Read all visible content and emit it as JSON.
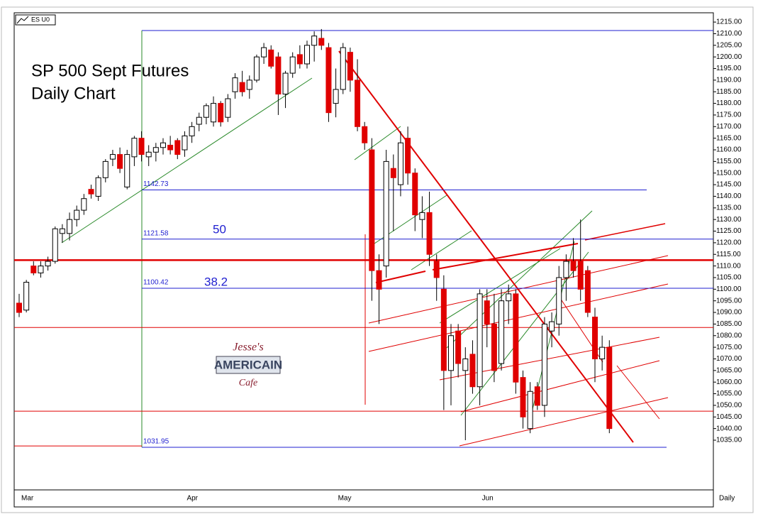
{
  "chart_data": {
    "type": "candlestick",
    "symbol": "ES U0",
    "title": "SP 500 Sept Futures",
    "subtitle": "Daily Chart",
    "x_label": "Daily",
    "watermark": [
      "Jesse's",
      "AMERICAIN",
      "Cafe"
    ],
    "annotations": [
      "50",
      "38.2"
    ],
    "categories": [
      "Mar",
      null,
      null,
      null,
      null,
      null,
      null,
      null,
      null,
      null,
      null,
      null,
      null,
      null,
      null,
      null,
      null,
      null,
      null,
      null,
      null,
      null,
      null,
      "Apr",
      null,
      null,
      null,
      null,
      null,
      null,
      null,
      null,
      null,
      null,
      null,
      null,
      null,
      null,
      null,
      null,
      null,
      null,
      null,
      null,
      "May",
      null,
      null,
      null,
      null,
      null,
      null,
      null,
      null,
      null,
      null,
      null,
      null,
      null,
      null,
      null,
      null,
      null,
      null,
      null,
      "Jun",
      null,
      null,
      null,
      null,
      null,
      null,
      null,
      null,
      null,
      null,
      null,
      null,
      null,
      null,
      null,
      null,
      null,
      null
    ],
    "open": [
      1094,
      1091,
      1110,
      1107,
      1110,
      1112,
      1124,
      1124,
      1130,
      1134,
      1143,
      1140,
      1148,
      1156,
      1158,
      1144,
      1157,
      1165,
      1157,
      1159,
      1161,
      1162,
      1164,
      1160,
      1166,
      1171,
      1174,
      1172,
      1180,
      1174,
      1185,
      1189,
      1186,
      1190,
      1200,
      1203,
      1200,
      1184,
      1193,
      1201,
      1197,
      1205,
      1208,
      1204,
      1180,
      1186,
      1202,
      1190,
      1170,
      1160,
      1108,
      1110,
      1152,
      1145,
      1165,
      1150,
      1130,
      1133,
      1112,
      1100,
      1065,
      1082,
      1065,
      1072,
      1058,
      1095,
      1085,
      1068,
      1095,
      1098,
      1062,
      1040,
      1058,
      1050,
      1082,
      1085,
      1105,
      1112,
      1112,
      1108,
      1088,
      1070,
      1075
    ],
    "high": [
      1098,
      1104,
      1112,
      1112,
      1114,
      1127,
      1128,
      1133,
      1136,
      1141,
      1145,
      1149,
      1156,
      1160,
      1161,
      1160,
      1166,
      1168,
      1162,
      1163,
      1165,
      1166,
      1165,
      1168,
      1172,
      1176,
      1180,
      1183,
      1181,
      1184,
      1193,
      1194,
      1192,
      1201,
      1206,
      1205,
      1202,
      1194,
      1202,
      1205,
      1207,
      1211,
      1212,
      1206,
      1195,
      1206,
      1204,
      1199,
      1172,
      1165,
      1115,
      1160,
      1158,
      1168,
      1170,
      1152,
      1140,
      1142,
      1115,
      1106,
      1085,
      1085,
      1075,
      1078,
      1100,
      1100,
      1098,
      1100,
      1102,
      1100,
      1065,
      1060,
      1060,
      1088,
      1090,
      1110,
      1115,
      1122,
      1130,
      1110,
      1092,
      1080,
      1078
    ],
    "low": [
      1088,
      1090,
      1106,
      1105,
      1108,
      1111,
      1120,
      1121,
      1127,
      1132,
      1139,
      1138,
      1146,
      1153,
      1150,
      1143,
      1153,
      1155,
      1153,
      1155,
      1158,
      1158,
      1156,
      1157,
      1163,
      1168,
      1171,
      1170,
      1170,
      1172,
      1182,
      1183,
      1182,
      1189,
      1197,
      1195,
      1175,
      1178,
      1191,
      1195,
      1195,
      1198,
      1203,
      1172,
      1174,
      1184,
      1185,
      1168,
      1160,
      1095,
      1085,
      1105,
      1125,
      1140,
      1145,
      1125,
      1122,
      1110,
      1095,
      1048,
      1050,
      1062,
      1035,
      1055,
      1050,
      1075,
      1060,
      1065,
      1085,
      1055,
      1040,
      1038,
      1048,
      1045,
      1075,
      1080,
      1095,
      1105,
      1095,
      1088,
      1060,
      1065,
      1038
    ],
    "close": [
      1090,
      1103,
      1107,
      1110,
      1112,
      1126,
      1126,
      1130,
      1134,
      1139,
      1141,
      1148,
      1155,
      1158,
      1152,
      1158,
      1165,
      1158,
      1159,
      1161,
      1163,
      1160,
      1158,
      1166,
      1170,
      1174,
      1179,
      1180,
      1172,
      1182,
      1191,
      1185,
      1190,
      1200,
      1204,
      1196,
      1184,
      1193,
      1200,
      1197,
      1205,
      1209,
      1205,
      1176,
      1186,
      1204,
      1190,
      1170,
      1163,
      1108,
      1100,
      1155,
      1148,
      1163,
      1150,
      1132,
      1133,
      1115,
      1105,
      1065,
      1080,
      1068,
      1070,
      1058,
      1098,
      1085,
      1065,
      1095,
      1098,
      1060,
      1045,
      1056,
      1050,
      1085,
      1086,
      1105,
      1112,
      1108,
      1100,
      1090,
      1070,
      1075,
      1040
    ],
    "up_color": "#ffffff",
    "down_color": "#e00000",
    "ylim": [
      1013.6,
      1219
    ],
    "yticks": [
      {
        "value": 1035,
        "label": "1035.00"
      },
      {
        "value": 1040,
        "label": "1040.00"
      },
      {
        "value": 1045,
        "label": "1045.00"
      },
      {
        "value": 1050,
        "label": "1050.00"
      },
      {
        "value": 1055,
        "label": "1055.00"
      },
      {
        "value": 1060,
        "label": "1060.00"
      },
      {
        "value": 1065,
        "label": "1065.00"
      },
      {
        "value": 1070,
        "label": "1070.00"
      },
      {
        "value": 1075,
        "label": "1075.00"
      },
      {
        "value": 1080,
        "label": "1080.00"
      },
      {
        "value": 1085,
        "label": "1085.00"
      },
      {
        "value": 1090,
        "label": "1090.00"
      },
      {
        "value": 1095,
        "label": "1095.00"
      },
      {
        "value": 1100,
        "label": "1100.00"
      },
      {
        "value": 1105,
        "label": "1105.00"
      },
      {
        "value": 1110,
        "label": "1110.00"
      },
      {
        "value": 1115,
        "label": "1115.00"
      },
      {
        "value": 1120,
        "label": "1120.00"
      },
      {
        "value": 1125,
        "label": "1125.00"
      },
      {
        "value": 1130,
        "label": "1130.00"
      },
      {
        "value": 1135,
        "label": "1135.00"
      },
      {
        "value": 1140,
        "label": "1140.00"
      },
      {
        "value": 1145,
        "label": "1145.00"
      },
      {
        "value": 1150,
        "label": "1150.00"
      },
      {
        "value": 1155,
        "label": "1155.00"
      },
      {
        "value": 1160,
        "label": "1160.00"
      },
      {
        "value": 1165,
        "label": "1165.00"
      },
      {
        "value": 1170,
        "label": "1170.00"
      },
      {
        "value": 1175,
        "label": "1175.00"
      },
      {
        "value": 1180,
        "label": "1180.00"
      },
      {
        "value": 1185,
        "label": "1185.00"
      },
      {
        "value": 1190,
        "label": "1190.00"
      },
      {
        "value": 1195,
        "label": "1195.00"
      },
      {
        "value": 1200,
        "label": "1200.00"
      },
      {
        "value": 1205,
        "label": "1205.00"
      },
      {
        "value": 1210,
        "label": "1210.00"
      },
      {
        "value": 1215,
        "label": "1215.00"
      }
    ],
    "fib_levels": [
      1142.73,
      1121.58,
      1100.42,
      1031.95
    ],
    "horizontal_lines": [
      1112.5,
      1083.5,
      1047.5,
      1032.5
    ]
  }
}
